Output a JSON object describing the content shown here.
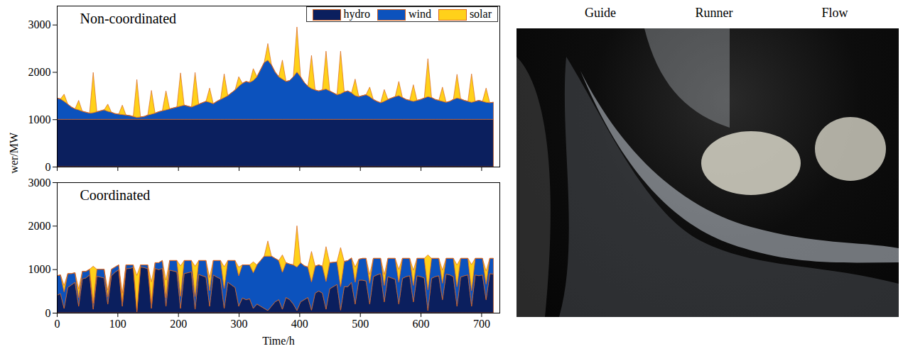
{
  "chart_data": [
    {
      "type": "area",
      "title": "Non-coordinated",
      "ylabel": "Output power/MW",
      "stacked": true,
      "legend": "top-right",
      "tick_labels": "y",
      "x": [
        0,
        6,
        12,
        18,
        24,
        30,
        36,
        42,
        48,
        54,
        60,
        66,
        72,
        78,
        84,
        90,
        96,
        102,
        108,
        114,
        120,
        126,
        132,
        138,
        144,
        150,
        156,
        162,
        168,
        174,
        180,
        186,
        192,
        198,
        204,
        210,
        216,
        222,
        228,
        234,
        240,
        246,
        252,
        258,
        264,
        270,
        276,
        282,
        288,
        294,
        300,
        306,
        312,
        318,
        324,
        330,
        336,
        342,
        348,
        354,
        360,
        366,
        372,
        378,
        384,
        390,
        396,
        402,
        408,
        414,
        420,
        426,
        432,
        438,
        444,
        450,
        456,
        462,
        468,
        474,
        480,
        486,
        492,
        498,
        504,
        510,
        516,
        522,
        528,
        534,
        540,
        546,
        552,
        558,
        564,
        570,
        576,
        582,
        588,
        594,
        600,
        606,
        612,
        618,
        624,
        630,
        636,
        642,
        648,
        654,
        660,
        666,
        672,
        678,
        684,
        690,
        696,
        702,
        708,
        714,
        720
      ],
      "xlim": [
        0,
        730
      ],
      "xticks": [
        0,
        100,
        200,
        300,
        400,
        500,
        600,
        700
      ],
      "ylim": [
        0,
        3400
      ],
      "yticks": [
        0,
        1000,
        2000,
        3000
      ],
      "series": [
        {
          "name": "hydro",
          "color": "#0b1f5e",
          "values": [
            1000,
            1000,
            1000,
            1000,
            1000,
            1000,
            1000,
            1000,
            1000,
            1000,
            1000,
            1000,
            1000,
            1000,
            1000,
            1000,
            1000,
            1000,
            1000,
            1000,
            1000,
            1000,
            1000,
            1000,
            1000,
            1000,
            1000,
            1000,
            1000,
            1000,
            1000,
            1000,
            1000,
            1000,
            1000,
            1000,
            1000,
            1000,
            1000,
            1000,
            1000,
            1000,
            1000,
            1000,
            1000,
            1000,
            1000,
            1000,
            1000,
            1000,
            1000,
            1000,
            1000,
            1000,
            1000,
            1000,
            1000,
            1000,
            1000,
            1000,
            1000,
            1000,
            1000,
            1000,
            1000,
            1000,
            1000,
            1000,
            1000,
            1000,
            1000,
            1000,
            1000,
            1000,
            1000,
            1000,
            1000,
            1000,
            1000,
            1000,
            1000,
            1000,
            1000,
            1000,
            1000,
            1000,
            1000,
            1000,
            1000,
            1000,
            1000,
            1000,
            1000,
            1000,
            1000,
            1000,
            1000,
            1000,
            1000,
            1000,
            1000,
            1000,
            1000,
            1000,
            1000,
            1000,
            1000,
            1000,
            1000,
            1000,
            1000,
            1000,
            1000,
            1000,
            1000,
            1000,
            1000,
            1000,
            1000,
            1000,
            1000
          ]
        },
        {
          "name": "wind",
          "color": "#0c52bd",
          "values": [
            450,
            430,
            380,
            320,
            260,
            220,
            200,
            170,
            150,
            130,
            140,
            160,
            180,
            200,
            170,
            150,
            120,
            110,
            100,
            90,
            80,
            60,
            40,
            50,
            60,
            90,
            110,
            130,
            160,
            180,
            200,
            220,
            240,
            260,
            280,
            300,
            280,
            260,
            290,
            320,
            350,
            380,
            360,
            330,
            380,
            420,
            460,
            500,
            560,
            620,
            700,
            760,
            800,
            780,
            820,
            900,
            1050,
            1200,
            1250,
            1150,
            1000,
            900,
            850,
            800,
            820,
            900,
            1000,
            900,
            780,
            700,
            650,
            620,
            600,
            620,
            640,
            600,
            560,
            520,
            540,
            580,
            600,
            560,
            500,
            480,
            500,
            520,
            480,
            420,
            380,
            350,
            380,
            420,
            450,
            480,
            500,
            460,
            420,
            400,
            380,
            400,
            420,
            450,
            480,
            460,
            420,
            400,
            380,
            360,
            380,
            420,
            450,
            430,
            400,
            380,
            360,
            380,
            400,
            380,
            360,
            350,
            360
          ]
        },
        {
          "name": "solar",
          "color": "#ffd11a",
          "values": [
            0,
            0,
            150,
            0,
            0,
            0,
            200,
            0,
            0,
            0,
            850,
            0,
            0,
            0,
            150,
            0,
            0,
            0,
            200,
            0,
            0,
            0,
            800,
            0,
            0,
            0,
            500,
            0,
            0,
            0,
            400,
            0,
            0,
            0,
            700,
            0,
            0,
            0,
            700,
            0,
            0,
            0,
            300,
            0,
            0,
            0,
            500,
            0,
            0,
            0,
            200,
            0,
            0,
            0,
            250,
            0,
            0,
            0,
            350,
            0,
            0,
            0,
            400,
            0,
            0,
            0,
            950,
            0,
            0,
            0,
            700,
            0,
            0,
            0,
            800,
            0,
            0,
            0,
            900,
            0,
            0,
            0,
            350,
            0,
            0,
            0,
            200,
            0,
            0,
            0,
            250,
            0,
            0,
            0,
            300,
            0,
            0,
            0,
            350,
            0,
            0,
            0,
            800,
            0,
            0,
            0,
            300,
            0,
            0,
            0,
            500,
            0,
            0,
            0,
            600,
            0,
            0,
            0,
            300,
            0,
            0
          ]
        }
      ]
    },
    {
      "type": "area",
      "title": "Coordinated",
      "xlabel": "Time/h",
      "stacked": true,
      "x": [
        0,
        6,
        12,
        18,
        24,
        30,
        36,
        42,
        48,
        54,
        60,
        66,
        72,
        78,
        84,
        90,
        96,
        102,
        108,
        114,
        120,
        126,
        132,
        138,
        144,
        150,
        156,
        162,
        168,
        174,
        180,
        186,
        192,
        198,
        204,
        210,
        216,
        222,
        228,
        234,
        240,
        246,
        252,
        258,
        264,
        270,
        276,
        282,
        288,
        294,
        300,
        306,
        312,
        318,
        324,
        330,
        336,
        342,
        348,
        354,
        360,
        366,
        372,
        378,
        384,
        390,
        396,
        402,
        408,
        414,
        420,
        426,
        432,
        438,
        444,
        450,
        456,
        462,
        468,
        474,
        480,
        486,
        492,
        498,
        504,
        510,
        516,
        522,
        528,
        534,
        540,
        546,
        552,
        558,
        564,
        570,
        576,
        582,
        588,
        594,
        600,
        606,
        612,
        618,
        624,
        630,
        636,
        642,
        648,
        654,
        660,
        666,
        672,
        678,
        684,
        690,
        696,
        702,
        708,
        714,
        720
      ],
      "xlim": [
        0,
        730
      ],
      "xticks": [
        0,
        100,
        200,
        300,
        400,
        500,
        600,
        700
      ],
      "ylim": [
        0,
        3000
      ],
      "yticks": [
        0,
        1000,
        2000,
        3000
      ],
      "series": [
        {
          "name": "hydro",
          "color": "#0b1f5e",
          "values": [
            400,
            440,
            100,
            580,
            640,
            700,
            150,
            780,
            800,
            870,
            80,
            840,
            820,
            800,
            200,
            850,
            930,
            990,
            150,
            1010,
            1020,
            1040,
            20,
            1050,
            1040,
            1010,
            100,
            1020,
            990,
            1020,
            150,
            980,
            960,
            940,
            100,
            900,
            920,
            940,
            80,
            880,
            850,
            820,
            150,
            870,
            820,
            780,
            100,
            700,
            640,
            580,
            150,
            340,
            300,
            320,
            100,
            200,
            150,
            100,
            50,
            150,
            250,
            300,
            80,
            350,
            300,
            200,
            50,
            250,
            300,
            350,
            60,
            450,
            500,
            450,
            80,
            550,
            600,
            650,
            60,
            600,
            600,
            700,
            200,
            750,
            750,
            730,
            200,
            830,
            870,
            900,
            250,
            830,
            800,
            770,
            200,
            790,
            830,
            850,
            250,
            850,
            830,
            800,
            50,
            790,
            830,
            850,
            300,
            890,
            870,
            830,
            150,
            820,
            850,
            870,
            150,
            870,
            850,
            870,
            300,
            900,
            890
          ]
        },
        {
          "name": "wind",
          "color": "#0c52bd",
          "values": [
            450,
            430,
            380,
            320,
            260,
            220,
            200,
            170,
            150,
            130,
            140,
            160,
            180,
            200,
            170,
            150,
            120,
            110,
            100,
            90,
            80,
            60,
            40,
            50,
            60,
            90,
            110,
            130,
            160,
            180,
            200,
            220,
            240,
            260,
            280,
            300,
            280,
            260,
            290,
            320,
            350,
            380,
            360,
            330,
            380,
            420,
            460,
            500,
            560,
            620,
            700,
            760,
            800,
            780,
            820,
            900,
            1050,
            1200,
            1250,
            1150,
            1000,
            900,
            850,
            800,
            820,
            900,
            1000,
            900,
            780,
            700,
            650,
            620,
            600,
            620,
            640,
            600,
            560,
            520,
            540,
            580,
            600,
            560,
            500,
            480,
            500,
            520,
            480,
            420,
            380,
            350,
            380,
            420,
            450,
            480,
            500,
            460,
            420,
            400,
            380,
            400,
            420,
            450,
            480,
            460,
            420,
            400,
            380,
            360,
            380,
            420,
            450,
            430,
            400,
            380,
            360,
            380,
            400,
            380,
            360,
            350,
            360
          ]
        },
        {
          "name": "solar",
          "color": "#ffd11a",
          "values": [
            0,
            0,
            150,
            0,
            0,
            0,
            200,
            0,
            0,
            0,
            850,
            0,
            0,
            0,
            150,
            0,
            0,
            0,
            200,
            0,
            0,
            0,
            800,
            0,
            0,
            0,
            500,
            0,
            0,
            0,
            400,
            0,
            0,
            0,
            700,
            0,
            0,
            0,
            700,
            0,
            0,
            0,
            300,
            0,
            0,
            0,
            500,
            0,
            0,
            0,
            200,
            0,
            0,
            0,
            250,
            0,
            0,
            0,
            350,
            0,
            0,
            0,
            400,
            0,
            0,
            0,
            950,
            0,
            0,
            0,
            700,
            0,
            0,
            0,
            800,
            0,
            0,
            0,
            900,
            0,
            0,
            0,
            350,
            0,
            0,
            0,
            200,
            0,
            0,
            0,
            250,
            0,
            0,
            0,
            300,
            0,
            0,
            0,
            350,
            0,
            0,
            0,
            800,
            0,
            0,
            0,
            300,
            0,
            0,
            0,
            500,
            0,
            0,
            0,
            600,
            0,
            0,
            0,
            300,
            0,
            0
          ]
        }
      ]
    }
  ],
  "photo": {
    "labels": [
      "Guide",
      "Runner",
      "Flow"
    ]
  }
}
